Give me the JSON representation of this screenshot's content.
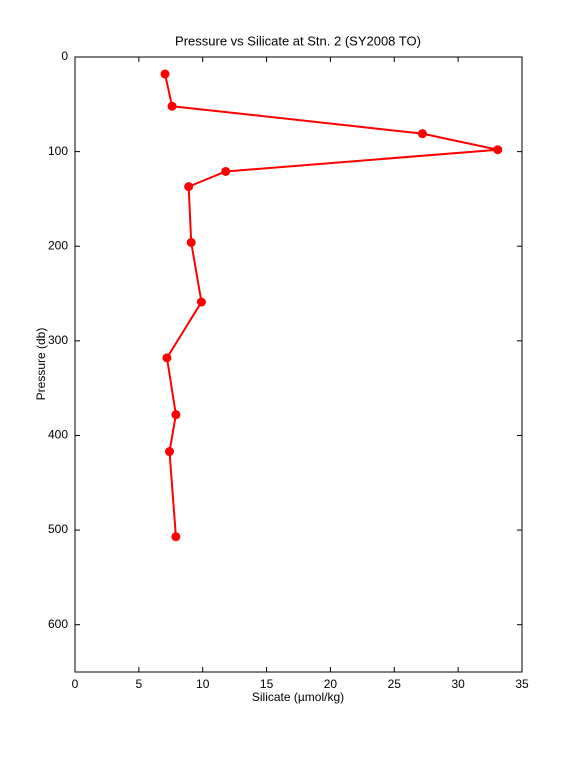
{
  "chart_data": {
    "type": "line",
    "title": "Pressure vs Silicate at Stn. 2 (SY2008 TO)",
    "xlabel": "Silicate (µmol/kg)",
    "ylabel": "Pressure (db)",
    "x": [
      7.05,
      7.6,
      27.2,
      33.1,
      11.8,
      8.9,
      9.1,
      9.9,
      7.2,
      7.9,
      7.4,
      7.9
    ],
    "values": [
      18,
      52,
      81,
      98,
      121,
      137,
      196,
      259,
      318,
      378,
      417,
      507
    ],
    "color": "#ff0000",
    "xlim": [
      0,
      35
    ],
    "xticks": [
      0,
      5,
      10,
      15,
      20,
      25,
      30,
      35
    ],
    "ylim": [
      0,
      650
    ],
    "yticks": [
      0,
      100,
      200,
      300,
      400,
      500,
      600
    ],
    "y_reversed": true,
    "grid": false
  }
}
